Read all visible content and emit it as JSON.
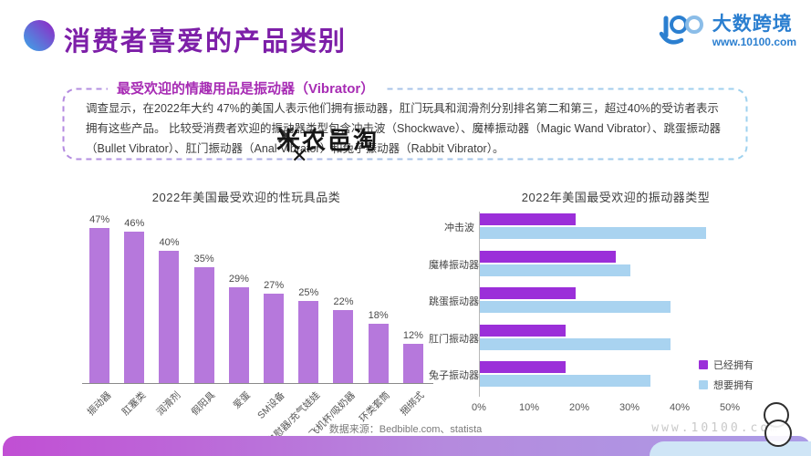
{
  "header": {
    "title": "消费者喜爱的产品类别",
    "logo": {
      "brand": "大数跨境",
      "url": "www.10100.com"
    }
  },
  "summary_box": {
    "title": "最受欢迎的情趣用品是振动器（Vibrator）",
    "body_line1": "调查显示，在2022年大约 47%的美国人表示他们拥有振动器，肛门玩具和润滑剂分别排名第二和第三，超过40%的受访者表示拥有这些产品。",
    "body_line2": "比较受消费者欢迎的振动器类型包含冲击波（Shockwave）、魔棒振动器（Magic Wand Vibrator）、跳蛋振动器（Bullet Vibrator）、肛门振动器（Anal Vibrator）和兔子振动器（Rabbit Vibrator）。"
  },
  "watermark": {
    "text": "米农邑淘",
    "x_mark": "✕"
  },
  "chart_data": [
    {
      "type": "bar",
      "title": "2022年美国最受欢迎的性玩具品类",
      "categories": [
        "振动器",
        "肛塞类",
        "润滑剂",
        "假阳具",
        "爱蛋",
        "SM设备",
        "自慰器/充气娃娃",
        "飞机杯/吸奶器",
        "环类套筒",
        "捆绑式"
      ],
      "values": [
        47,
        46,
        40,
        35,
        29,
        27,
        25,
        22,
        18,
        12
      ],
      "unit": "%",
      "ylim": [
        0,
        50
      ],
      "bar_color": "#b678dc",
      "grid": false
    },
    {
      "type": "bar",
      "orientation": "horizontal",
      "title": "2022年美国最受欢迎的振动器类型",
      "categories": [
        "冲击波",
        "魔棒振动器",
        "跳蛋振动器",
        "肛门振动器",
        "兔子振动器"
      ],
      "series": [
        {
          "name": "已经拥有",
          "color": "#9b2fd9",
          "values": [
            19,
            27,
            19,
            17,
            17
          ]
        },
        {
          "name": "想要拥有",
          "color": "#a9d3f0",
          "values": [
            45,
            30,
            38,
            38,
            34
          ]
        }
      ],
      "x_ticks": [
        "0%",
        "10%",
        "20%",
        "30%",
        "40%",
        "50%"
      ],
      "xlim": [
        0,
        50
      ],
      "legend_position": "right",
      "grid": false
    }
  ],
  "footer": {
    "source": "数据来源：Bedbible.com、statista",
    "watermark": "www.10100.com"
  },
  "colors": {
    "accent_purple": "#7d1fa8",
    "box_title_magenta": "#a72cb4",
    "left_bar": "#b678dc",
    "owned_purple": "#9b2fd9",
    "want_blue": "#a9d3f0",
    "brand_blue": "#2b7fd0",
    "bottom_bar_left": "#c14fd4",
    "bottom_bar_right": "#ab9ce6"
  }
}
